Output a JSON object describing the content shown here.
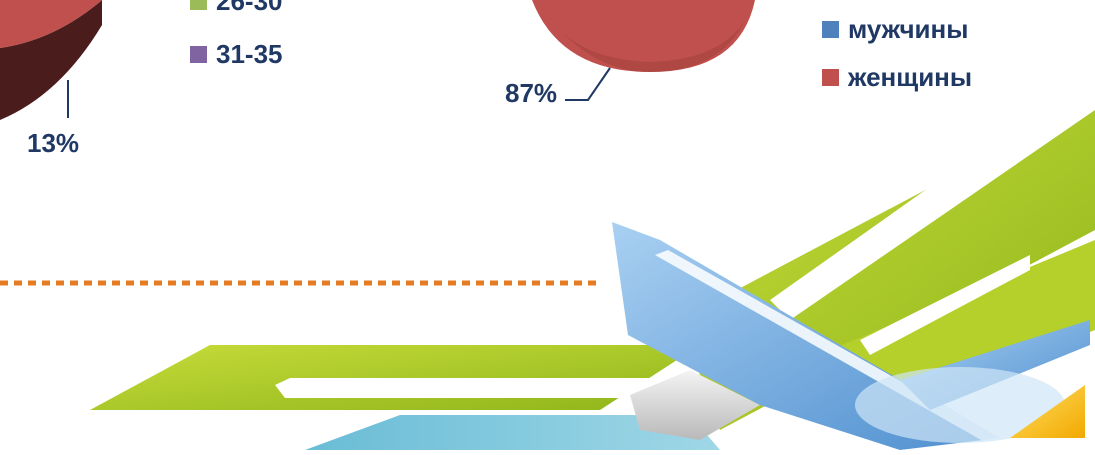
{
  "chart_data": [
    {
      "type": "pie",
      "slices": [
        {
          "label": "13%",
          "value": 13
        }
      ],
      "legend": [
        {
          "label": "26-30",
          "color": "#9bbb59"
        },
        {
          "label": "31-35",
          "color": "#8064a2"
        }
      ],
      "slice_color": "#c0504d"
    },
    {
      "type": "pie",
      "slices": [
        {
          "label": "87%",
          "value": 87
        }
      ],
      "legend": [
        {
          "label": "мужчины",
          "color": "#4f81bd"
        },
        {
          "label": "женщины",
          "color": "#c0504d"
        }
      ],
      "slice_color": "#c0504d"
    }
  ],
  "colors": {
    "label_text": "#1f3864",
    "divider": "#e57b22",
    "lime": "#a8c724",
    "blue": "#6aa6dc"
  }
}
